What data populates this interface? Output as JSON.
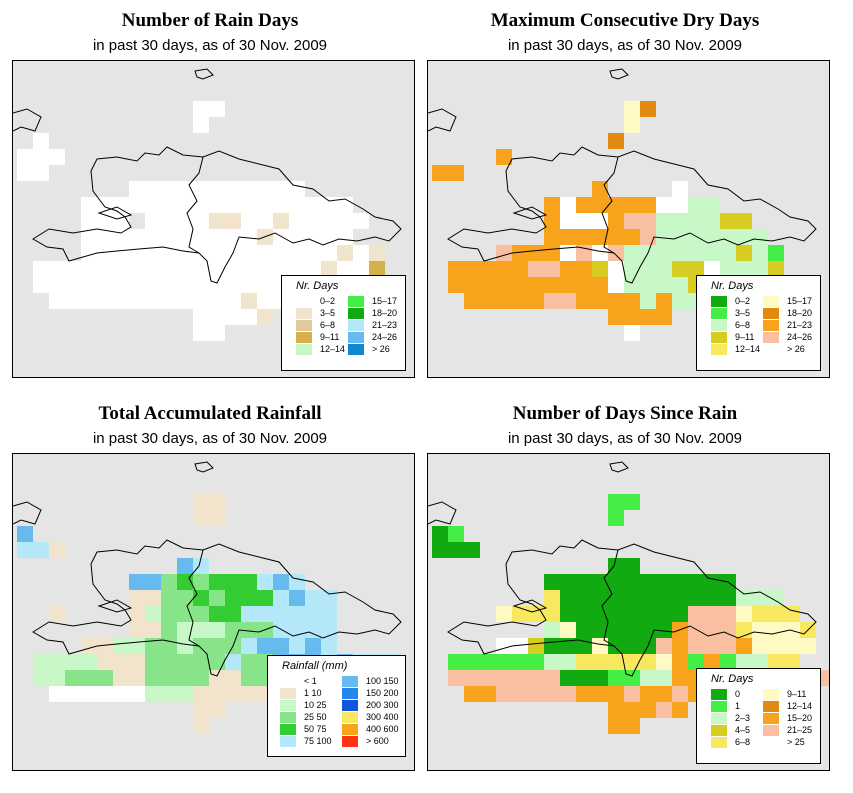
{
  "panels": [
    {
      "title": "Number of Rain Days",
      "subtitle": "in past 30 days, as of  30 Nov. 2009",
      "legend_title": "Nr. Days",
      "legend": [
        {
          "label": "0–2",
          "color": "#ffffff"
        },
        {
          "label": "3–5",
          "color": "#f2e4cc"
        },
        {
          "label": "6–8",
          "color": "#e0c99a"
        },
        {
          "label": "9–11",
          "color": "#d4b24a"
        },
        {
          "label": "12–14",
          "color": "#c8f7c8"
        },
        {
          "label": "15–17",
          "color": "#44ee44"
        },
        {
          "label": "18–20",
          "color": "#11aa11"
        },
        {
          "label": "21–23",
          "color": "#b4e8f8"
        },
        {
          "label": "24–26",
          "color": "#66bbee"
        },
        {
          "label": "> 26",
          "color": "#1188cc"
        }
      ]
    },
    {
      "title": "Maximum Consecutive Dry Days",
      "subtitle": "in past 30 days, as of  30 Nov. 2009",
      "legend_title": "Nr. Days",
      "legend": [
        {
          "label": "0–2",
          "color": "#11aa11"
        },
        {
          "label": "3–5",
          "color": "#44ee44"
        },
        {
          "label": "6–8",
          "color": "#c8f7c8"
        },
        {
          "label": "9–11",
          "color": "#d6cc22"
        },
        {
          "label": "12–14",
          "color": "#f8e860"
        },
        {
          "label": "15–17",
          "color": "#fff9c4"
        },
        {
          "label": "18–20",
          "color": "#e08a10"
        },
        {
          "label": "21–23",
          "color": "#f7a41c"
        },
        {
          "label": "24–26",
          "color": "#f8c0a0"
        },
        {
          "label": "> 26",
          "color": "#ffffff"
        }
      ]
    },
    {
      "title": "Total Accumulated Rainfall",
      "subtitle": "in past 30 days, as of  30 Nov. 2009",
      "legend_title": "Rainfall (mm)",
      "legend": [
        {
          "label": "< 1",
          "color": "#ffffff"
        },
        {
          "label": "1   10",
          "color": "#f2e4cc"
        },
        {
          "label": "10   25",
          "color": "#c8f7c8"
        },
        {
          "label": "25   50",
          "color": "#88e488"
        },
        {
          "label": "50   75",
          "color": "#33cc33"
        },
        {
          "label": "75   100",
          "color": "#b4e8f8"
        },
        {
          "label": "100   150",
          "color": "#66bbee"
        },
        {
          "label": "150   200",
          "color": "#2288ee"
        },
        {
          "label": "200   300",
          "color": "#1155dd"
        },
        {
          "label": "300   400",
          "color": "#f8e860"
        },
        {
          "label": "400   600",
          "color": "#f7a41c"
        },
        {
          "label": "> 600",
          "color": "#ff3311"
        }
      ]
    },
    {
      "title": "Number of Days Since Rain",
      "subtitle": "in past 30 days, as of  30 Nov. 2009",
      "legend_title": "Nr. Days",
      "legend": [
        {
          "label": "0",
          "color": "#11aa11"
        },
        {
          "label": "1",
          "color": "#44ee44"
        },
        {
          "label": "2–3",
          "color": "#c8f7c8"
        },
        {
          "label": "4–5",
          "color": "#d6cc22"
        },
        {
          "label": "6–8",
          "color": "#f8e860"
        },
        {
          "label": "9–11",
          "color": "#fff9c4"
        },
        {
          "label": "12–14",
          "color": "#e08a10"
        },
        {
          "label": "15–20",
          "color": "#f7a41c"
        },
        {
          "label": "21–25",
          "color": "#f8c0a0"
        },
        {
          "label": "> 25",
          "color": "#ffffff"
        }
      ]
    }
  ],
  "map_grids": [
    [
      "...........aa...........",
      "...........a............",
      ".a......................",
      "aaa.....................",
      "aa......................",
      ".......0000aaaaaaa......",
      "....000000aaaaaaaaaaa...",
      "....000.0aaabbaabaaaaa..",
      "....000aa0aaaaabaaaaa...",
      "....000000aaaaaaaaaabab.",
      ".aaaaaaaa00aaaaaaaabaad.",
      ".aaaa0000000aaaaaaaaaa..",
      "..00000000000abaaaaa....",
      "...........aaaab........",
      "...........aa..........."
    ],
    [
      "............fg...........",
      "............f............",
      "...........g.............",
      "....h....................",
      "hh.......................",
      "..........h....j.........",
      ".......hjhhhhhjjcc.......",
      ".......hjjjhiiccccdd.....",
      ".......hhhhhhiccccccc....",
      "....ihhhjijicccccccdcb...",
      ".hhhhhiihhdjcccddjcccd...",
      ".hhhhhhhhhhjccccdcccdcc..",
      "..hhhhhiihhhhchccccc.....",
      "...........hhhh..........",
      "............j............"
    ],
    [
      "...........bb...........",
      "...........bb...........",
      "g........................",
      "ffb......................",
      "..........gf.............",
      ".......ggdedeeefgf.......",
      ".......bbddedeeefgff.....",
      "..b....bcdddeeffffff.....",
      ".......bbdcccdddffff.....",
      "....bbccddcdddfggfgf.....",
      ".ccccbbbdddddfddgggfgfff.",
      ".ccdddbbddddbbddfggfgf...",
      "..aaaaaacccbbbbb.........",
      "...........bb............",
      "...........b............."
    ],
    [
      "...........bb...........",
      "...........b.............",
      "ab.......................",
      "aaa......................",
      "...........aa............",
      ".......aaaaaaaaaaaa......",
      ".......eaaaaaaaaaaaccc...",
      "....feeeaaaaaaaaiiifeee..",
      ".......cfaaaaaahiiiefffe.",
      "....jjdaaafaaaihiiihffff.",
      ".bbbbbbcceeeeefhbhbccee..",
      ".iiiiiiiaaabbcchhhhhhihii.",
      "..hhiiiiihhhihhihhhh.....",
      "...........hhhih.........",
      "...........hh............"
    ]
  ]
}
